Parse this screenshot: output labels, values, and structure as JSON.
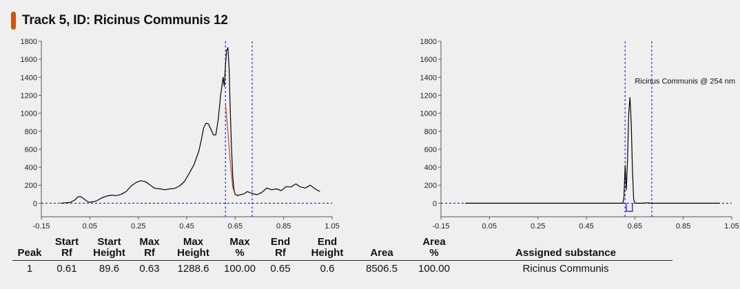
{
  "title": "Track 5, ID: Ricinus Communis 12",
  "colors": {
    "accent": "#d2520f",
    "trace": "#000000",
    "fit": "#c0392b",
    "marker": "#2a2ad6"
  },
  "chart_data": [
    {
      "type": "line",
      "xlim": [
        -0.15,
        1.05
      ],
      "ylim": [
        -150,
        1800
      ],
      "xticks": [
        "-0.15",
        "0.05",
        "0.25",
        "0.45",
        "0.65",
        "0.85",
        "1.05"
      ],
      "yticks": [
        "0",
        "200",
        "400",
        "600",
        "800",
        "1000",
        "1200",
        "1400",
        "1600",
        "1800"
      ],
      "markers_x": [
        0.61,
        0.72
      ],
      "baseline_y": 0,
      "series": [
        {
          "x": [
            -0.07,
            -0.05,
            -0.03,
            -0.01,
            0.0,
            0.01,
            0.02,
            0.03,
            0.04,
            0.05,
            0.06,
            0.07,
            0.08,
            0.09,
            0.1,
            0.12,
            0.14,
            0.16,
            0.18,
            0.2,
            0.22,
            0.24,
            0.26,
            0.27,
            0.28,
            0.29,
            0.3,
            0.31,
            0.32,
            0.34,
            0.36,
            0.38,
            0.4,
            0.42,
            0.44,
            0.46,
            0.48,
            0.5,
            0.51,
            0.52,
            0.53,
            0.54,
            0.55,
            0.56,
            0.57,
            0.58,
            0.59,
            0.6,
            0.605,
            0.61,
            0.615,
            0.62,
            0.625,
            0.63,
            0.635,
            0.64,
            0.645,
            0.65,
            0.66,
            0.67,
            0.68,
            0.69,
            0.7,
            0.72,
            0.74,
            0.76,
            0.78,
            0.8,
            0.82,
            0.84,
            0.86,
            0.88,
            0.9,
            0.92,
            0.94,
            0.96,
            0.98,
            1.0
          ],
          "y": [
            0,
            5,
            10,
            40,
            70,
            75,
            60,
            40,
            20,
            10,
            15,
            20,
            30,
            45,
            60,
            80,
            90,
            85,
            100,
            130,
            190,
            230,
            250,
            245,
            240,
            220,
            200,
            180,
            165,
            160,
            150,
            160,
            165,
            190,
            240,
            330,
            430,
            580,
            700,
            840,
            890,
            880,
            820,
            760,
            760,
            930,
            1200,
            1400,
            1300,
            1550,
            1700,
            1730,
            1500,
            1000,
            600,
            300,
            150,
            100,
            85,
            95,
            100,
            110,
            130,
            110,
            95,
            120,
            170,
            150,
            160,
            140,
            185,
            180,
            215,
            180,
            170,
            200,
            160,
            130
          ]
        },
        {
          "x": [
            0.61,
            0.62,
            0.63,
            0.64,
            0.65
          ],
          "y": [
            1100,
            800,
            450,
            180,
            90
          ]
        }
      ]
    },
    {
      "type": "line",
      "xlim": [
        -0.15,
        1.05
      ],
      "ylim": [
        -150,
        1800
      ],
      "xticks": [
        "-0.15",
        "0.05",
        "0.25",
        "0.45",
        "0.65",
        "0.85",
        "1.05"
      ],
      "yticks": [
        "0",
        "200",
        "400",
        "600",
        "800",
        "1000",
        "1200",
        "1400",
        "1600",
        "1800"
      ],
      "markers_x": [
        0.61,
        0.72
      ],
      "baseline_y": 0,
      "annotation": "Ricinus Communis @ 254 nm",
      "peak_box": {
        "x0": 0.615,
        "x1": 0.64,
        "y": -90
      },
      "series": [
        {
          "x": [
            -0.05,
            0.59,
            0.6,
            0.605,
            0.61,
            0.615,
            0.62,
            0.625,
            0.63,
            0.635,
            0.64,
            0.645,
            0.65,
            0.66,
            0.68,
            0.7,
            0.72,
            0.74,
            1.0
          ],
          "y": [
            0,
            0,
            0,
            60,
            420,
            150,
            500,
            1000,
            1175,
            900,
            400,
            50,
            0,
            0,
            0,
            5,
            0,
            0,
            0
          ]
        }
      ]
    }
  ],
  "table": {
    "headers": [
      [
        "",
        "Peak"
      ],
      [
        "Start",
        "Rf"
      ],
      [
        "Start",
        "Height"
      ],
      [
        "Max",
        "Rf"
      ],
      [
        "Max",
        "Height"
      ],
      [
        "Max",
        "%"
      ],
      [
        "End",
        "Rf"
      ],
      [
        "End",
        "Height"
      ],
      [
        "",
        "Area"
      ],
      [
        "Area",
        "%"
      ],
      [
        "",
        "Assigned substance"
      ]
    ],
    "rows": [
      [
        "1",
        "0.61",
        "89.6",
        "0.63",
        "1288.6",
        "100.00",
        "0.65",
        "0.6",
        "8506.5",
        "100.00",
        "Ricinus Communis"
      ]
    ]
  }
}
